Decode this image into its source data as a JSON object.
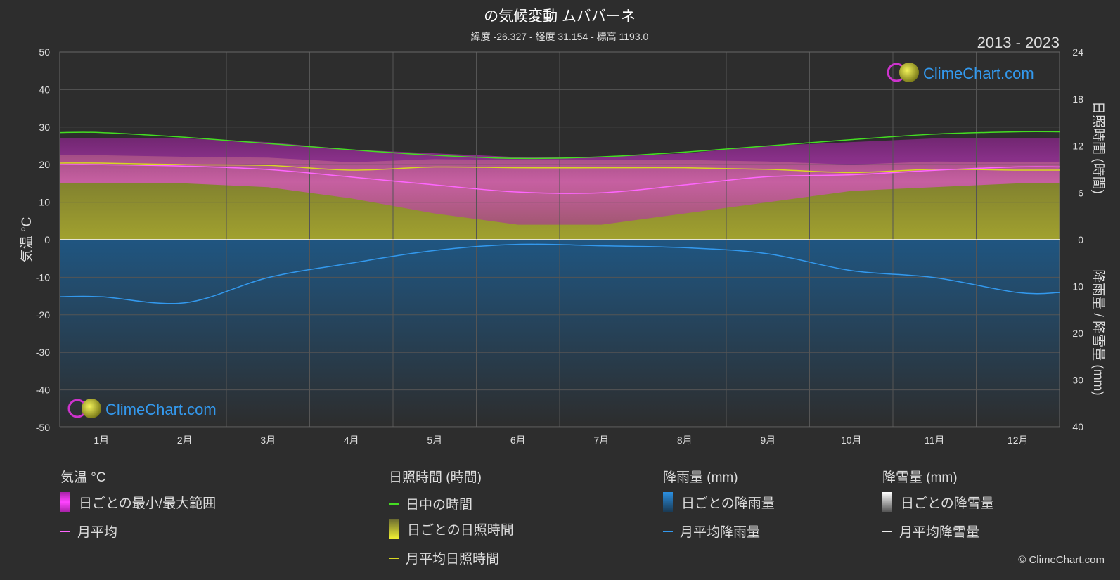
{
  "chart_data": {
    "type": "line",
    "title": "の気候変動 ムババーネ",
    "subtitle": "緯度 -26.327 - 経度 31.154 - 標高 1193.0",
    "period": "2013 - 2023",
    "categories": [
      "1月",
      "2月",
      "3月",
      "4月",
      "5月",
      "6月",
      "7月",
      "8月",
      "9月",
      "10月",
      "11月",
      "12月"
    ],
    "left_axis": {
      "label": "気温 °C",
      "range": [
        -50,
        50
      ],
      "ticks": [
        50,
        40,
        30,
        20,
        10,
        0,
        -10,
        -20,
        -30,
        -40,
        -50
      ]
    },
    "right_axis_top": {
      "label": "日照時間 (時間)",
      "range": [
        0,
        24
      ],
      "ticks": [
        24,
        18,
        12,
        6,
        0
      ]
    },
    "right_axis_bottom": {
      "label": "降雨量 / 降雪量 (mm)",
      "range": [
        0,
        40
      ],
      "ticks": [
        0,
        10,
        20,
        30,
        40
      ]
    },
    "series": [
      {
        "name": "日中の時間",
        "unit": "時間",
        "color": "#44dd22",
        "values": [
          13.7,
          13.1,
          12.3,
          11.5,
          10.8,
          10.4,
          10.6,
          11.2,
          12.0,
          12.8,
          13.5,
          13.8
        ]
      },
      {
        "name": "月平均日照時間",
        "unit": "時間",
        "color": "#d8d822",
        "values": [
          9.8,
          9.6,
          9.5,
          8.9,
          9.3,
          9.2,
          9.2,
          9.2,
          9.0,
          8.6,
          9.0,
          8.9
        ]
      },
      {
        "name": "月平均",
        "unit": "°C",
        "color": "#ff66ff",
        "values": [
          20.0,
          19.6,
          18.7,
          16.7,
          14.6,
          12.7,
          12.5,
          14.6,
          16.8,
          17.3,
          18.5,
          19.4
        ]
      },
      {
        "name": "月平均降雨量",
        "unit": "mm",
        "color": "#3399ee",
        "values": [
          12.2,
          13.5,
          8.1,
          5.0,
          2.3,
          1.0,
          1.3,
          1.7,
          3.0,
          6.6,
          8.1,
          11.3
        ]
      },
      {
        "name": "月平均降雪量",
        "unit": "mm",
        "color": "#eeeeee",
        "values": [
          0,
          0,
          0,
          0,
          0,
          0,
          0,
          0,
          0,
          0,
          0,
          0
        ]
      }
    ],
    "temp_range_band": {
      "name": "日ごとの最小/最大範囲",
      "color": "#cc22cc",
      "max": [
        27,
        27,
        26,
        24,
        23,
        22,
        22,
        23,
        25,
        26,
        27,
        27
      ],
      "min": [
        15,
        15,
        14,
        11,
        7,
        4,
        4,
        7,
        10,
        13,
        14,
        15
      ]
    },
    "sunshine_band": {
      "name": "日ごとの日照時間",
      "color": "#a0a030"
    },
    "rain_band": {
      "name": "日ごとの降雨量",
      "color": "#2277bb"
    },
    "grid": true
  },
  "watermark": {
    "text": "ClimeChart.com"
  },
  "legend": {
    "temperature": {
      "title": "気温 °C",
      "items": [
        "日ごとの最小/最大範囲",
        "月平均"
      ]
    },
    "sunshine": {
      "title": "日照時間 (時間)",
      "items": [
        "日中の時間",
        "日ごとの日照時間",
        "月平均日照時間"
      ]
    },
    "rain": {
      "title": "降雨量 (mm)",
      "items": [
        "日ごとの降雨量",
        "月平均降雨量"
      ]
    },
    "snow": {
      "title": "降雪量 (mm)",
      "items": [
        "日ごとの降雪量",
        "月平均降雪量"
      ]
    }
  },
  "copyright": "© ClimeChart.com",
  "colors": {
    "background": "#2d2d2d",
    "grid": "#4a4a4a",
    "text": "#dddddd",
    "accent": "#3399ee"
  }
}
